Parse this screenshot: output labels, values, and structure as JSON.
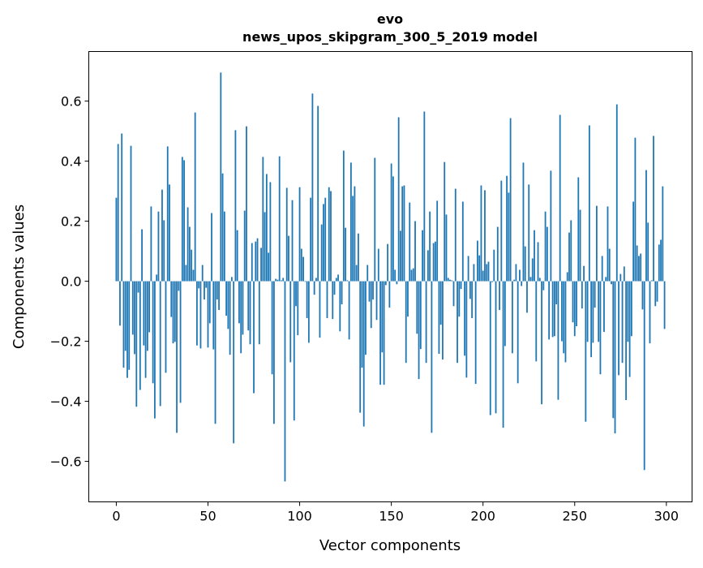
{
  "chart_data": {
    "type": "bar",
    "title": "evo",
    "subtitle": "news_upos_skipgram_300_5_2019 model",
    "xlabel": "Vector components",
    "ylabel": "Components values",
    "xlim": [
      -15,
      314
    ],
    "ylim": [
      -0.735,
      0.765
    ],
    "xticks": [
      0,
      50,
      100,
      150,
      200,
      250,
      300
    ],
    "xtick_labels": [
      "0",
      "50",
      "100",
      "150",
      "200",
      "250",
      "300"
    ],
    "yticks": [
      -0.6,
      -0.4,
      -0.2,
      0.0,
      0.2,
      0.4,
      0.6
    ],
    "ytick_labels": [
      "−0.6",
      "−0.4",
      "−0.2",
      "0.0",
      "0.2",
      "0.4",
      "0.6"
    ],
    "grid": false,
    "bar_color": "#1f77b4",
    "values": [
      0.278,
      0.457,
      -0.148,
      0.492,
      -0.288,
      -0.232,
      -0.322,
      -0.295,
      0.451,
      -0.178,
      -0.243,
      -0.418,
      -0.038,
      -0.362,
      0.173,
      -0.214,
      -0.322,
      -0.232,
      -0.17,
      0.249,
      -0.34,
      -0.457,
      0.022,
      0.232,
      -0.416,
      0.305,
      0.203,
      -0.305,
      0.449,
      0.322,
      -0.119,
      -0.207,
      -0.202,
      -0.505,
      -0.032,
      -0.405,
      0.414,
      0.403,
      0.054,
      0.246,
      0.181,
      0.105,
      0.038,
      0.562,
      -0.214,
      -0.024,
      -0.224,
      0.054,
      -0.061,
      -0.022,
      -0.221,
      -0.14,
      0.227,
      -0.227,
      -0.475,
      -0.061,
      -0.096,
      0.695,
      0.359,
      0.232,
      -0.115,
      -0.159,
      -0.245,
      0.014,
      -0.54,
      0.503,
      0.17,
      -0.14,
      -0.24,
      -0.178,
      0.235,
      0.516,
      -0.164,
      -0.21,
      0.127,
      -0.373,
      0.132,
      0.143,
      -0.21,
      0.111,
      0.414,
      0.23,
      0.357,
      0.095,
      0.33,
      -0.31,
      -0.475,
      0.008,
      0.005,
      0.416,
      0.003,
      0.011,
      -0.667,
      0.311,
      0.151,
      -0.27,
      0.27,
      -0.464,
      -0.083,
      -0.18,
      0.313,
      0.108,
      0.081,
      -0.002,
      -0.123,
      -0.205,
      0.278,
      0.625,
      -0.045,
      0.011,
      0.584,
      -0.188,
      0.189,
      0.257,
      0.278,
      -0.123,
      0.313,
      0.3,
      -0.126,
      -0.045,
      0.011,
      0.022,
      -0.167,
      -0.077,
      0.435,
      0.178,
      0.003,
      -0.194,
      0.395,
      0.284,
      0.316,
      0.054,
      0.159,
      -0.438,
      -0.288,
      -0.484,
      -0.245,
      0.054,
      -0.068,
      -0.156,
      -0.061,
      0.411,
      -0.129,
      0.108,
      -0.345,
      -0.237,
      -0.345,
      -0.013,
      0.124,
      -0.088,
      0.392,
      0.349,
      0.038,
      -0.01,
      0.546,
      0.168,
      0.316,
      0.319,
      -0.272,
      -0.118,
      0.262,
      0.038,
      0.043,
      0.2,
      -0.175,
      -0.326,
      -0.226,
      0.17,
      0.565,
      -0.272,
      0.103,
      0.232,
      -0.505,
      0.127,
      0.132,
      0.268,
      -0.242,
      -0.145,
      -0.261,
      0.397,
      0.222,
      0.011,
      0.005,
      0.003,
      -0.083,
      0.308,
      -0.272,
      -0.118,
      -0.026,
      0.265,
      -0.248,
      -0.321,
      0.084,
      -0.059,
      -0.123,
      0.057,
      -0.342,
      0.135,
      0.086,
      0.319,
      0.035,
      0.303,
      0.057,
      0.065,
      -0.446,
      -0.003,
      0.105,
      -0.44,
      0.181,
      -0.096,
      0.335,
      -0.488,
      -0.216,
      0.351,
      0.295,
      0.543,
      -0.24,
      0.005,
      0.057,
      -0.34,
      0.038,
      -0.016,
      0.395,
      0.116,
      -0.105,
      0.322,
      0.014,
      0.076,
      0.17,
      -0.267,
      0.13,
      0.011,
      -0.41,
      -0.03,
      0.232,
      0.181,
      -0.194,
      0.368,
      -0.186,
      -0.183,
      -0.077,
      -0.395,
      0.554,
      -0.2,
      -0.24,
      -0.27,
      0.03,
      0.162,
      0.203,
      -0.137,
      -0.183,
      -0.15,
      0.346,
      0.238,
      -0.091,
      0.051,
      -0.468,
      -0.202,
      0.519,
      -0.253,
      -0.205,
      -0.088,
      0.251,
      -0.202,
      -0.31,
      0.084,
      -0.169,
      0.014,
      0.249,
      0.108,
      -0.01,
      -0.456,
      -0.507,
      0.589,
      -0.313,
      0.024,
      -0.272,
      0.049,
      -0.396,
      -0.202,
      -0.319,
      -0.183,
      0.265,
      0.478,
      0.119,
      0.084,
      0.092,
      -0.094,
      -0.629,
      0.37,
      0.195,
      -0.207,
      0.003,
      0.484,
      -0.083,
      -0.068,
      0.122,
      0.138,
      0.316,
      -0.159
    ]
  }
}
